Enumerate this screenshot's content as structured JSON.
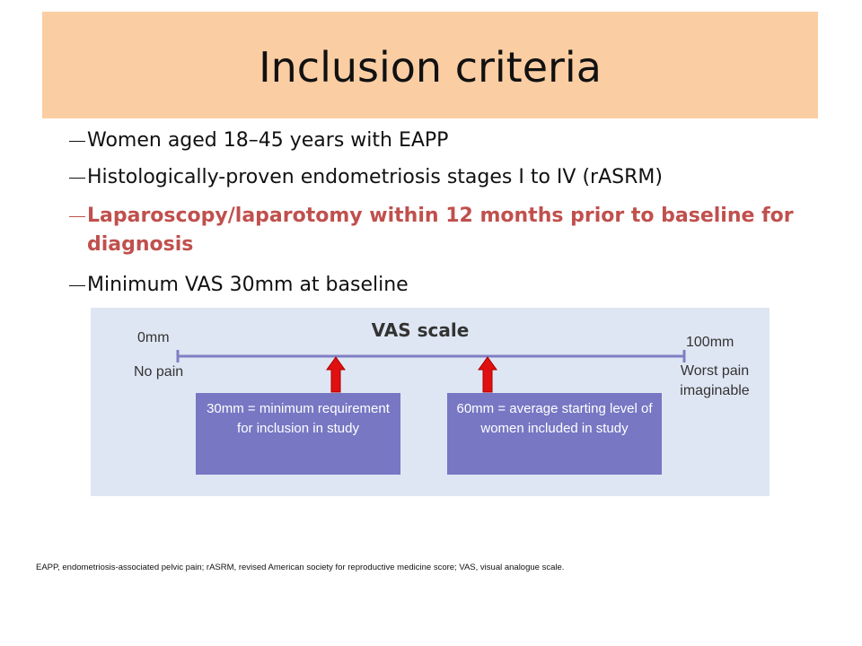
{
  "header": {
    "title": "Inclusion criteria"
  },
  "bullets": [
    "Women aged 18–45 years with EAPP",
    "Histologically-proven endometriosis stages I to IV (rASRM)",
    "Laparoscopy/laparotomy within 12 months prior to baseline for diagnosis",
    "Minimum VAS 30mm at baseline"
  ],
  "vas": {
    "title": "VAS scale",
    "left_value": "0mm",
    "left_label": "No pain",
    "right_value": "100mm",
    "right_label": "Worst pain imaginable",
    "boxes": [
      "30mm = minimum requirement for inclusion in study",
      "60mm = average starting level of women included in study"
    ]
  },
  "footnote": "EAPP, endometriosis-associated pelvic pain; rASRM, revised American society for reproductive medicine score; VAS, visual analogue scale."
}
